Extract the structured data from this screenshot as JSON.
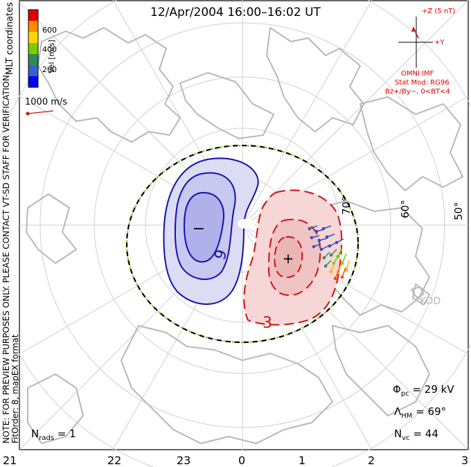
{
  "title": "12/Apr/2004  16:00–16:02  UT",
  "coords_label": "MLT coordinates",
  "colorbar": {
    "label": "Vel [m/s]",
    "ticks": [
      "600",
      "400",
      "200"
    ],
    "colors": [
      "#0000ff",
      "#3a5fcd",
      "#2e8b57",
      "#7ccd00",
      "#ffd700",
      "#ff8c00",
      "#ff4500",
      "#e00000"
    ]
  },
  "velocity_scale": "1000 m/s",
  "imf": {
    "z_label": "+Z (5 nT)",
    "y_label": "+Y",
    "source": "OMNI IMF",
    "stat_mod": "Stat Mod: RG96",
    "condition": "Bz+/By−, 0<BT<4"
  },
  "lat_labels": [
    "70°",
    "60°",
    "50°"
  ],
  "mlt_labels": [
    "21",
    "22",
    "23",
    "0",
    "1",
    "2",
    "3"
  ],
  "site_label": "KOD",
  "notes": {
    "preview": "NOTE: FOR PREVIEW PURPOSES ONLY. PLEASE CONTACT VT-SD STAFF FOR VERIFICATION.",
    "fit": "FitOrder: 8, mapEX format"
  },
  "stats": {
    "phi_pc": "Φ",
    "phi_pc_sub": "pc",
    "phi_pc_value": "= 29 kV",
    "lambda_hm": "Λ",
    "lambda_hm_sub": "HM",
    "lambda_hm_value": "= 69°",
    "n_vc": "N",
    "n_vc_sub": "vc",
    "n_vc_value": "= 44",
    "n_rads": "N",
    "n_rads_sub": "rads",
    "n_rads_value": "= 1"
  },
  "contours": {
    "neg_marker": "−",
    "pos_marker": "+",
    "neg_label": "9",
    "pos_label": "3"
  },
  "colors": {
    "neg_line": "#1010b0",
    "neg_fill": "#c8c8f0",
    "pos_line": "#d01010",
    "pos_fill": "#f3c8c8",
    "grid": "#cfcfcf",
    "coast": "#b8b8b8"
  }
}
